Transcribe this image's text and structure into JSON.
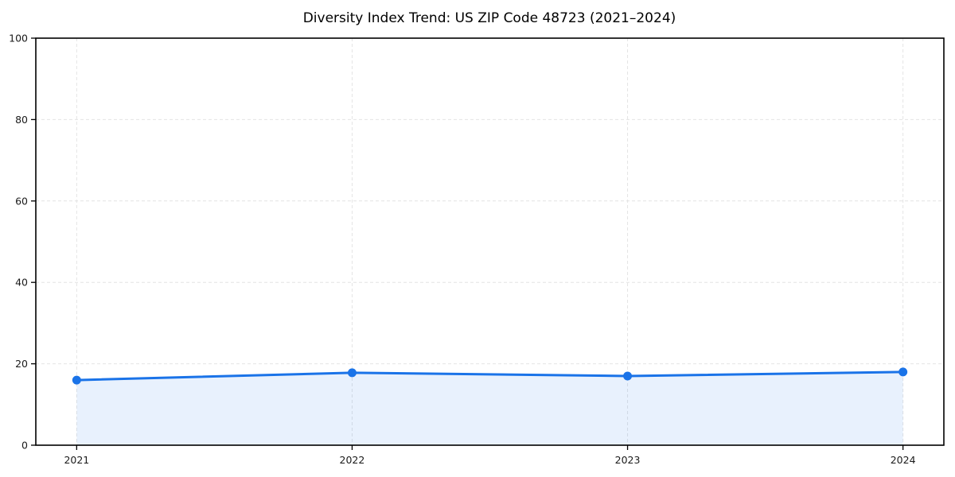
{
  "chart_data": {
    "type": "line",
    "title": "Diversity Index Trend: US ZIP Code 48723 (2021–2024)",
    "x": [
      "2021",
      "2022",
      "2023",
      "2024"
    ],
    "series": [
      {
        "name": "Diversity Index",
        "values": [
          16,
          17.8,
          17,
          18
        ]
      }
    ],
    "xlabel": "",
    "ylabel": "",
    "ylim": [
      0,
      100
    ],
    "yticks": [
      0,
      20,
      40,
      60,
      80,
      100
    ],
    "grid": true,
    "grid_style": "dashed",
    "legend": false,
    "area_fill": true,
    "marker": "circle",
    "colors": {
      "line": "#1a73e8",
      "marker": "#1a73e8",
      "fill": "#1a73e8",
      "fill_opacity": 0.1,
      "grid": "#e4e4e4",
      "axis": "#000000",
      "text": "#1a1a1a",
      "background": "#ffffff"
    }
  }
}
